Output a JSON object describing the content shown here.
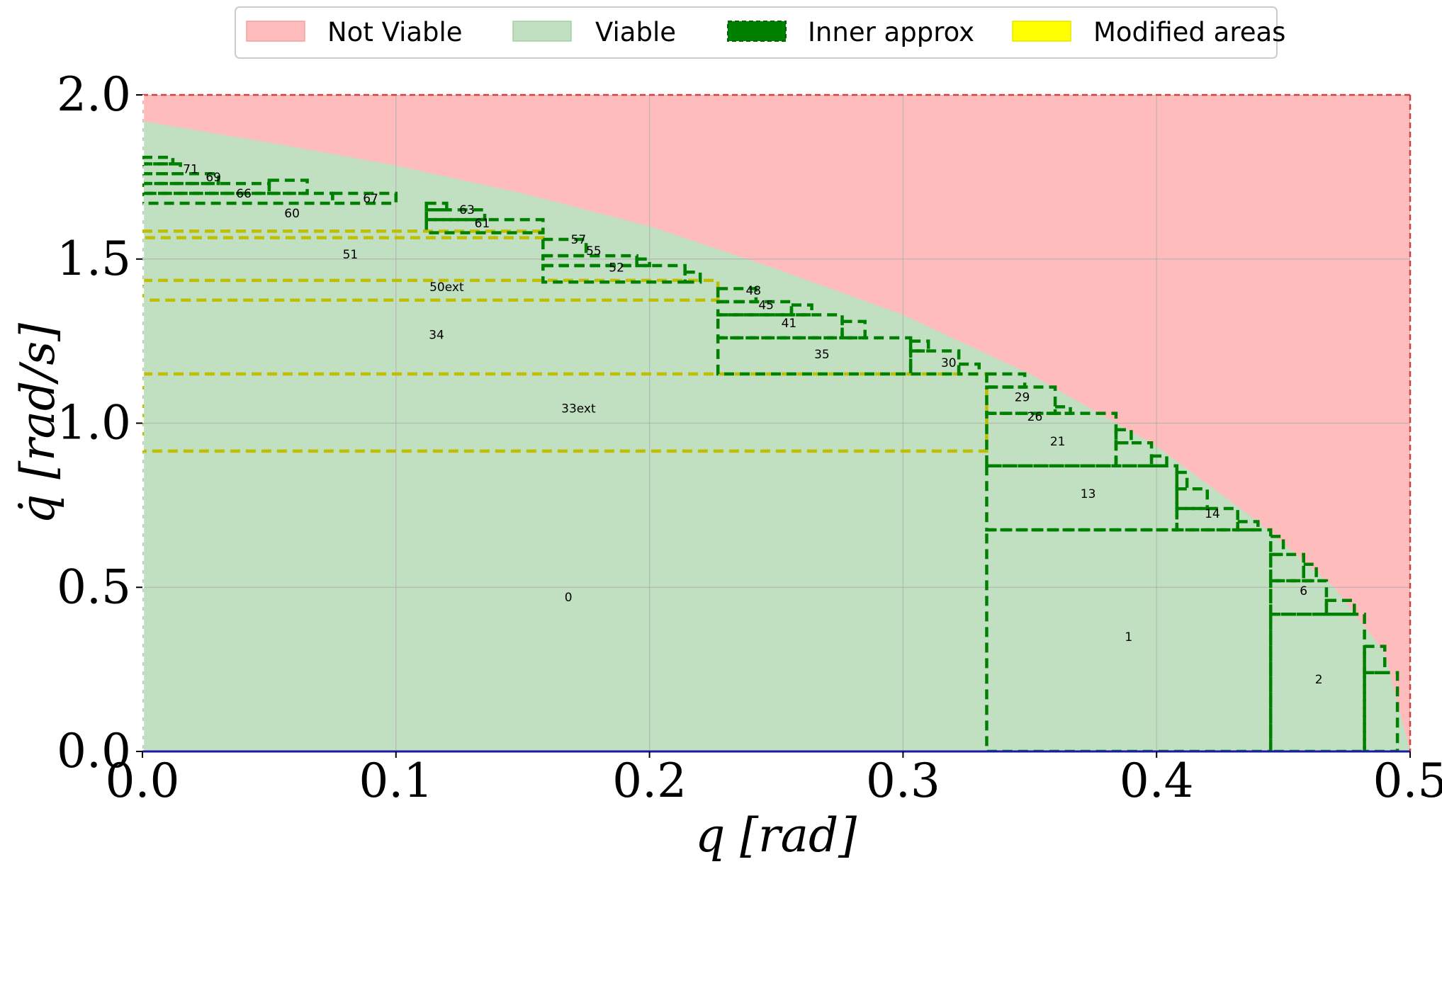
{
  "chart_data": {
    "type": "area",
    "title": "",
    "xlabel": "q [rad]",
    "ylabel": "q̇ [rad/s]",
    "xlim": [
      0.0,
      0.5
    ],
    "ylim": [
      0.0,
      2.0
    ],
    "xticks": [
      "0.0",
      "0.1",
      "0.2",
      "0.3",
      "0.4",
      "0.5"
    ],
    "yticks": [
      "0.0",
      "0.5",
      "1.0",
      "1.5",
      "2.0"
    ],
    "grid": true,
    "legend_position": "top-center",
    "colors": {
      "not_viable": "#ffbcbc",
      "viable": "#c1dfc1",
      "inner_approx": "#008000",
      "modified": "#bfbf00",
      "legend_modified": "#ffff00"
    },
    "legend": [
      {
        "label": "Not Viable",
        "kind": "not_viable"
      },
      {
        "label": "Viable",
        "kind": "viable"
      },
      {
        "label": "Inner approx",
        "kind": "inner"
      },
      {
        "label": "Modified areas",
        "kind": "modified"
      }
    ],
    "viable_boundary": [
      [
        0.0,
        1.92
      ],
      [
        0.05,
        1.855
      ],
      [
        0.1,
        1.785
      ],
      [
        0.15,
        1.7
      ],
      [
        0.2,
        1.6
      ],
      [
        0.25,
        1.47
      ],
      [
        0.3,
        1.33
      ],
      [
        0.35,
        1.15
      ],
      [
        0.4,
        0.93
      ],
      [
        0.44,
        0.7
      ],
      [
        0.47,
        0.5
      ],
      [
        0.49,
        0.3
      ],
      [
        0.5,
        0.0
      ]
    ],
    "inner_boxes": [
      [
        0.333,
        0.445,
        0.0,
        0.675
      ],
      [
        0.445,
        0.482,
        0.0,
        0.418
      ],
      [
        0.482,
        0.495,
        0.0,
        0.24
      ],
      [
        0.482,
        0.49,
        0.24,
        0.32
      ],
      [
        0.445,
        0.467,
        0.418,
        0.52
      ],
      [
        0.467,
        0.478,
        0.418,
        0.46
      ],
      [
        0.445,
        0.458,
        0.52,
        0.6
      ],
      [
        0.458,
        0.463,
        0.52,
        0.57
      ],
      [
        0.445,
        0.45,
        0.6,
        0.655
      ],
      [
        0.333,
        0.408,
        0.675,
        0.87
      ],
      [
        0.408,
        0.432,
        0.675,
        0.74
      ],
      [
        0.432,
        0.44,
        0.675,
        0.7
      ],
      [
        0.408,
        0.42,
        0.74,
        0.8
      ],
      [
        0.408,
        0.412,
        0.8,
        0.85
      ],
      [
        0.333,
        0.384,
        0.87,
        1.03
      ],
      [
        0.384,
        0.398,
        0.87,
        0.94
      ],
      [
        0.398,
        0.404,
        0.87,
        0.9
      ],
      [
        0.384,
        0.39,
        0.94,
        0.98
      ],
      [
        0.333,
        0.36,
        1.03,
        1.11
      ],
      [
        0.36,
        0.366,
        1.03,
        1.05
      ],
      [
        0.333,
        0.348,
        1.11,
        1.15
      ],
      [
        0.227,
        0.303,
        1.15,
        1.26
      ],
      [
        0.303,
        0.322,
        1.15,
        1.22
      ],
      [
        0.322,
        0.33,
        1.15,
        1.18
      ],
      [
        0.303,
        0.31,
        1.22,
        1.25
      ],
      [
        0.227,
        0.276,
        1.26,
        1.33
      ],
      [
        0.276,
        0.285,
        1.26,
        1.31
      ],
      [
        0.227,
        0.256,
        1.33,
        1.37
      ],
      [
        0.256,
        0.264,
        1.33,
        1.36
      ],
      [
        0.227,
        0.242,
        1.37,
        1.41
      ],
      [
        0.158,
        0.214,
        1.43,
        1.48
      ],
      [
        0.214,
        0.22,
        1.43,
        1.46
      ],
      [
        0.158,
        0.195,
        1.48,
        1.51
      ],
      [
        0.195,
        0.2,
        1.48,
        1.5
      ],
      [
        0.158,
        0.175,
        1.51,
        1.56
      ],
      [
        0.112,
        0.158,
        1.58,
        1.62
      ],
      [
        0.112,
        0.135,
        1.62,
        1.65
      ],
      [
        0.112,
        0.12,
        1.65,
        1.67
      ],
      [
        0.0,
        0.075,
        1.67,
        1.7
      ],
      [
        0.075,
        0.1,
        1.67,
        1.7
      ],
      [
        0.0,
        0.05,
        1.7,
        1.73
      ],
      [
        0.05,
        0.065,
        1.7,
        1.74
      ],
      [
        0.0,
        0.03,
        1.73,
        1.76
      ],
      [
        0.0,
        0.015,
        1.76,
        1.79
      ],
      [
        0.0,
        0.012,
        1.79,
        1.81
      ]
    ],
    "modified_boxes": [
      [
        0.0,
        0.333,
        0.915,
        1.15
      ],
      [
        0.0,
        0.227,
        1.375,
        1.435
      ],
      [
        0.0,
        0.158,
        1.565,
        1.585
      ]
    ],
    "region_labels": [
      {
        "text": "0",
        "x": 0.168,
        "y": 0.47
      },
      {
        "text": "1",
        "x": 0.389,
        "y": 0.35
      },
      {
        "text": "2",
        "x": 0.464,
        "y": 0.22
      },
      {
        "text": "6",
        "x": 0.458,
        "y": 0.49
      },
      {
        "text": "13",
        "x": 0.373,
        "y": 0.785
      },
      {
        "text": "14",
        "x": 0.422,
        "y": 0.725
      },
      {
        "text": "21",
        "x": 0.361,
        "y": 0.945
      },
      {
        "text": "26",
        "x": 0.352,
        "y": 1.02
      },
      {
        "text": "29",
        "x": 0.347,
        "y": 1.08
      },
      {
        "text": "30",
        "x": 0.318,
        "y": 1.185
      },
      {
        "text": "33ext",
        "x": 0.172,
        "y": 1.045
      },
      {
        "text": "34",
        "x": 0.116,
        "y": 1.27
      },
      {
        "text": "35",
        "x": 0.268,
        "y": 1.21
      },
      {
        "text": "41",
        "x": 0.255,
        "y": 1.305
      },
      {
        "text": "45",
        "x": 0.246,
        "y": 1.36
      },
      {
        "text": "48",
        "x": 0.241,
        "y": 1.405
      },
      {
        "text": "50ext",
        "x": 0.12,
        "y": 1.415
      },
      {
        "text": "51",
        "x": 0.082,
        "y": 1.515
      },
      {
        "text": "52",
        "x": 0.187,
        "y": 1.475
      },
      {
        "text": "55",
        "x": 0.178,
        "y": 1.525
      },
      {
        "text": "57",
        "x": 0.172,
        "y": 1.56
      },
      {
        "text": "60",
        "x": 0.059,
        "y": 1.64
      },
      {
        "text": "61",
        "x": 0.134,
        "y": 1.61
      },
      {
        "text": "63",
        "x": 0.128,
        "y": 1.65
      },
      {
        "text": "66",
        "x": 0.04,
        "y": 1.7
      },
      {
        "text": "67",
        "x": 0.09,
        "y": 1.685
      },
      {
        "text": "69",
        "x": 0.028,
        "y": 1.75
      },
      {
        "text": "71",
        "x": 0.019,
        "y": 1.775
      }
    ]
  }
}
